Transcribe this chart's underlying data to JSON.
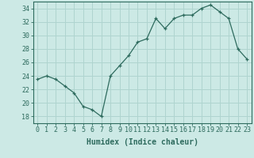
{
  "x": [
    0,
    1,
    2,
    3,
    4,
    5,
    6,
    7,
    8,
    9,
    10,
    11,
    12,
    13,
    14,
    15,
    16,
    17,
    18,
    19,
    20,
    21,
    22,
    23
  ],
  "y": [
    23.5,
    24.0,
    23.5,
    22.5,
    21.5,
    19.5,
    19.0,
    18.0,
    24.0,
    25.5,
    27.0,
    29.0,
    29.5,
    32.5,
    31.0,
    32.5,
    33.0,
    33.0,
    34.0,
    34.5,
    33.5,
    32.5,
    28.0,
    26.5
  ],
  "line_color": "#2e6b5e",
  "bg_color": "#cce9e5",
  "grid_color": "#afd4cf",
  "xlabel": "Humidex (Indice chaleur)",
  "xlabel_fontsize": 7,
  "tick_fontsize": 6,
  "ylim": [
    17,
    35
  ],
  "xlim": [
    -0.5,
    23.5
  ],
  "yticks": [
    18,
    20,
    22,
    24,
    26,
    28,
    30,
    32,
    34
  ],
  "xticks": [
    0,
    1,
    2,
    3,
    4,
    5,
    6,
    7,
    8,
    9,
    10,
    11,
    12,
    13,
    14,
    15,
    16,
    17,
    18,
    19,
    20,
    21,
    22,
    23
  ]
}
